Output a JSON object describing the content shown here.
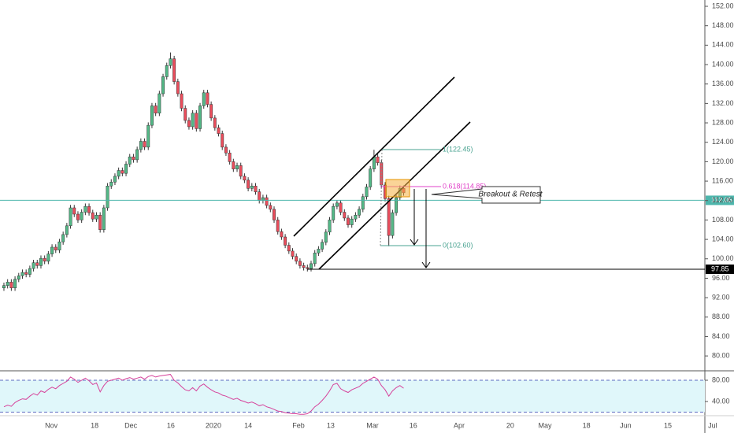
{
  "chart_data": [
    {
      "type": "candlestick",
      "open": [
        94.0,
        94.5,
        95.2,
        94.0,
        95.8,
        96.5,
        97.2,
        96.8,
        98.0,
        99.2,
        98.6,
        100.1,
        99.5,
        101.0,
        102.4,
        101.8,
        103.5,
        105.0,
        106.8,
        110.5,
        109.2,
        108.0,
        109.6,
        110.8,
        109.5,
        108.2,
        109.0,
        106.0,
        110.5,
        115.0,
        115.8,
        117.0,
        118.2,
        117.6,
        119.5,
        121.0,
        120.4,
        122.5,
        124.2,
        123.0,
        127.5,
        131.5,
        130.0,
        134.0,
        137.5,
        139.8,
        141.2,
        136.5,
        134.0,
        131.0,
        128.5,
        127.2,
        130.0,
        126.8,
        131.5,
        134.2,
        131.8,
        129.0,
        127.0,
        125.8,
        123.0,
        121.8,
        120.0,
        118.5,
        119.2,
        117.0,
        116.2,
        114.5,
        115.0,
        113.8,
        112.0,
        112.6,
        111.0,
        110.2,
        108.0,
        105.6,
        104.5,
        102.8,
        101.6,
        100.5,
        99.5,
        98.6,
        98.2,
        98.0,
        99.0,
        101.2,
        102.0,
        103.4,
        105.5,
        108.0,
        110.8,
        111.5,
        109.6,
        108.4,
        107.0,
        108.2,
        109.0,
        110.2,
        112.8,
        114.8,
        118.5,
        121.0,
        119.8,
        115.2,
        112.4,
        104.8,
        109.5,
        112.6,
        114.5
      ],
      "high": [
        95.1,
        95.8,
        95.8,
        96.4,
        97.1,
        97.8,
        97.8,
        98.6,
        99.8,
        99.8,
        100.7,
        100.7,
        101.6,
        103.0,
        103.0,
        104.1,
        105.6,
        107.4,
        111.1,
        111.1,
        109.8,
        110.2,
        111.4,
        111.4,
        110.1,
        109.6,
        109.6,
        111.1,
        115.6,
        116.4,
        117.6,
        118.8,
        118.8,
        120.1,
        121.6,
        121.6,
        123.1,
        124.8,
        124.8,
        128.1,
        132.1,
        132.1,
        134.6,
        138.1,
        140.4,
        142.5,
        141.8,
        137.1,
        134.6,
        131.6,
        129.1,
        130.6,
        130.6,
        132.1,
        134.8,
        134.8,
        132.4,
        129.6,
        127.6,
        126.4,
        123.6,
        122.4,
        120.6,
        119.8,
        119.8,
        117.6,
        116.8,
        115.6,
        115.6,
        114.4,
        113.2,
        113.2,
        111.6,
        110.8,
        108.6,
        106.2,
        105.1,
        103.4,
        102.2,
        101.1,
        100.1,
        99.2,
        98.8,
        99.6,
        101.8,
        102.6,
        104.0,
        106.1,
        108.6,
        111.4,
        112.1,
        112.1,
        110.2,
        109.0,
        108.8,
        109.6,
        110.8,
        113.4,
        115.4,
        119.1,
        122.45,
        121.6,
        120.4,
        115.8,
        113.0,
        110.1,
        113.2,
        115.1,
        115.1
      ],
      "low": [
        93.4,
        93.9,
        93.4,
        93.4,
        95.2,
        95.9,
        96.2,
        96.2,
        97.4,
        98.0,
        98.0,
        98.9,
        98.9,
        100.4,
        101.2,
        101.2,
        102.9,
        104.4,
        106.2,
        108.6,
        107.4,
        107.4,
        109.0,
        108.9,
        107.6,
        107.6,
        105.4,
        105.4,
        109.9,
        114.4,
        115.2,
        116.4,
        117.0,
        117.0,
        118.9,
        119.8,
        119.8,
        121.9,
        122.4,
        122.4,
        126.9,
        129.4,
        129.4,
        133.4,
        136.9,
        139.2,
        135.9,
        133.4,
        130.4,
        127.9,
        126.6,
        126.6,
        126.2,
        126.2,
        130.9,
        131.2,
        128.4,
        126.4,
        125.2,
        122.4,
        121.2,
        119.4,
        117.9,
        117.9,
        116.4,
        115.6,
        113.9,
        113.9,
        113.2,
        111.4,
        111.4,
        110.4,
        109.6,
        107.4,
        105.0,
        103.9,
        102.2,
        101.0,
        99.9,
        98.9,
        98.0,
        97.6,
        97.4,
        97.4,
        98.4,
        100.6,
        101.4,
        102.8,
        104.9,
        107.4,
        110.2,
        109.0,
        107.8,
        106.4,
        106.4,
        107.6,
        108.4,
        109.6,
        112.2,
        114.2,
        117.9,
        119.2,
        114.6,
        111.8,
        102.6,
        104.2,
        108.9,
        112.0,
        113.0
      ],
      "close": [
        94.5,
        95.2,
        94.0,
        95.8,
        96.5,
        97.2,
        96.8,
        98.0,
        99.2,
        98.6,
        100.1,
        99.5,
        101.0,
        102.4,
        101.8,
        103.5,
        105.0,
        106.8,
        110.5,
        109.2,
        108.0,
        109.6,
        110.8,
        109.5,
        108.2,
        109.0,
        106.0,
        110.5,
        115.0,
        115.8,
        117.0,
        118.2,
        117.6,
        119.5,
        121.0,
        120.4,
        122.5,
        124.2,
        123.0,
        127.5,
        131.5,
        130.0,
        134.0,
        137.5,
        139.8,
        141.2,
        136.5,
        134.0,
        131.0,
        128.5,
        127.2,
        130.0,
        126.8,
        131.5,
        134.2,
        131.8,
        129.0,
        127.0,
        125.8,
        123.0,
        121.8,
        120.0,
        118.5,
        119.2,
        117.0,
        116.2,
        114.5,
        115.0,
        113.8,
        112.0,
        112.6,
        111.0,
        110.2,
        108.0,
        105.6,
        104.5,
        102.8,
        101.6,
        100.5,
        99.5,
        98.6,
        98.2,
        98.0,
        99.0,
        101.2,
        102.0,
        103.4,
        105.5,
        108.0,
        110.8,
        111.5,
        109.6,
        108.4,
        107.0,
        108.2,
        109.0,
        110.2,
        112.8,
        114.8,
        118.5,
        121.0,
        119.8,
        115.2,
        112.4,
        104.8,
        109.5,
        112.6,
        114.5,
        113.6
      ],
      "up_color": "#53b987",
      "down_color": "#eb4d5c",
      "xlim": [
        -1.06,
        189.4
      ],
      "xticks": [
        {
          "value": 12.8,
          "label": "Nov"
        },
        {
          "value": 24.5,
          "label": "18"
        },
        {
          "value": 34.3,
          "label": "Dec"
        },
        {
          "value": 45.1,
          "label": "16"
        },
        {
          "value": 56.6,
          "label": "2020"
        },
        {
          "value": 66,
          "label": "14"
        },
        {
          "value": 79.6,
          "label": "Feb"
        },
        {
          "value": 88.3,
          "label": "13"
        },
        {
          "value": 99.6,
          "label": "Mar"
        },
        {
          "value": 110.6,
          "label": "16"
        },
        {
          "value": 123,
          "label": "Apr"
        },
        {
          "value": 136.8,
          "label": "20"
        },
        {
          "value": 146.2,
          "label": "May"
        },
        {
          "value": 157.4,
          "label": "18"
        },
        {
          "value": 168,
          "label": "Jun"
        },
        {
          "value": 179.4,
          "label": "15"
        },
        {
          "value": 191.5,
          "label": "Jul"
        }
      ],
      "ylim": [
        77.1,
        153.3
      ],
      "yticks": [
        {
          "value": 80,
          "label": "80.00"
        },
        {
          "value": 84,
          "label": "84.00"
        },
        {
          "value": 88,
          "label": "88.00"
        },
        {
          "value": 92,
          "label": "92.00"
        },
        {
          "value": 96,
          "label": "96.00"
        },
        {
          "value": 100,
          "label": "100.00"
        },
        {
          "value": 104,
          "label": "104.00"
        },
        {
          "value": 108,
          "label": "108.00"
        },
        {
          "value": 112,
          "label": "112.00"
        },
        {
          "value": 116,
          "label": "116.00"
        },
        {
          "value": 120,
          "label": "120.00"
        },
        {
          "value": 124,
          "label": "124.00"
        },
        {
          "value": 128,
          "label": "128.00"
        },
        {
          "value": 132,
          "label": "132.00"
        },
        {
          "value": 136,
          "label": "136.00"
        },
        {
          "value": 140,
          "label": "140.00"
        },
        {
          "value": 144,
          "label": "144.00"
        },
        {
          "value": 148,
          "label": "148.00"
        },
        {
          "value": 152,
          "label": "152.00"
        }
      ],
      "price_lines": [
        {
          "value": 112.05,
          "color": "#4db6ac"
        },
        {
          "value": 97.85,
          "color": "#000000"
        }
      ],
      "fib_labels": [
        "1(122.45)",
        "0.618(114.85)",
        "0(102.60)"
      ],
      "annotation": "Breakout & Retest"
    },
    {
      "type": "line",
      "values": [
        30,
        33,
        31,
        38,
        42,
        45,
        44,
        50,
        55,
        52,
        60,
        57,
        63,
        67,
        64,
        70,
        74,
        78,
        86,
        82,
        76,
        80,
        84,
        79,
        72,
        75,
        58,
        70,
        78,
        80,
        82,
        84,
        80,
        83,
        85,
        82,
        84,
        86,
        82,
        87,
        89,
        86,
        88,
        89,
        90,
        91,
        80,
        75,
        68,
        62,
        60,
        66,
        60,
        69,
        73,
        67,
        62,
        58,
        56,
        52,
        50,
        47,
        44,
        46,
        42,
        40,
        37,
        39,
        36,
        32,
        34,
        30,
        28,
        25,
        22,
        21,
        19,
        18,
        17,
        17,
        16,
        16,
        17,
        22,
        30,
        35,
        42,
        50,
        60,
        72,
        74,
        64,
        60,
        57,
        62,
        65,
        68,
        74,
        78,
        82,
        86,
        82,
        70,
        62,
        50,
        60,
        66,
        70,
        65
      ],
      "color": "#d6419a",
      "ylim": [
        13.3,
        96.3
      ],
      "yticks": [
        {
          "value": 40,
          "label": "40.00"
        },
        {
          "value": 80,
          "label": "80.00"
        }
      ],
      "bands": [
        20,
        80
      ],
      "band_color": "#e0f7fa"
    }
  ]
}
